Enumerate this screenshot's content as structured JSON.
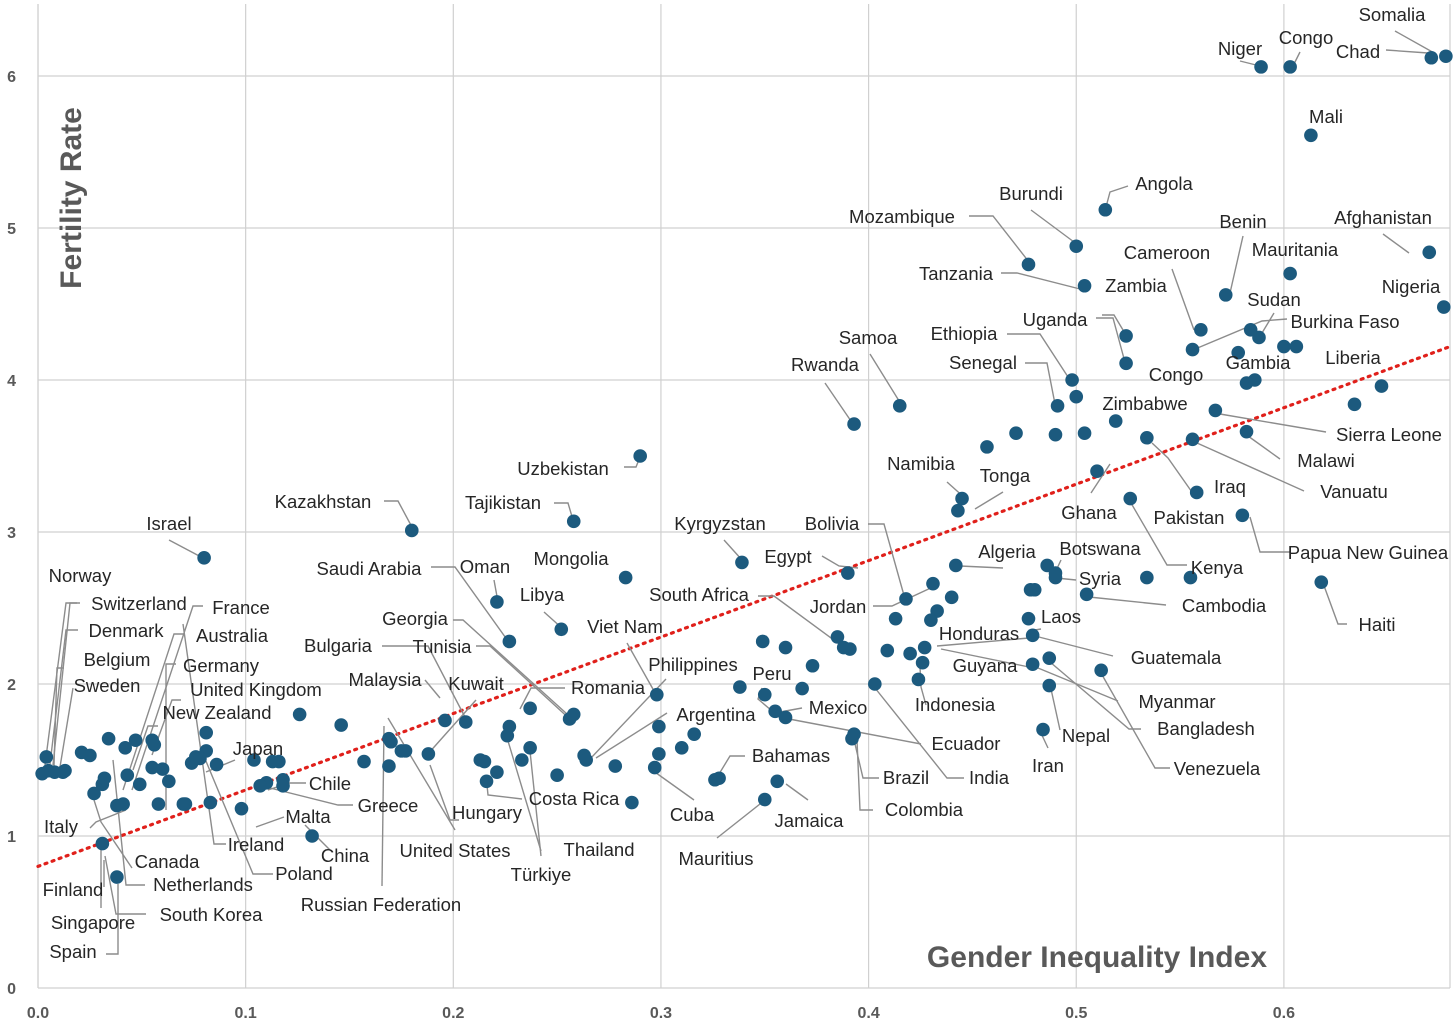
{
  "chart_data": {
    "type": "scatter",
    "xlabel": "Gender Inequality Index",
    "ylabel": "Fertility Rate",
    "xlim": [
      0,
      0.68
    ],
    "ylim": [
      0,
      6.4
    ],
    "x_ticks": [
      "0.0",
      "0.1",
      "0.2",
      "0.3",
      "0.4",
      "0.5",
      "0.6"
    ],
    "y_ticks": [
      "0",
      "1",
      "2",
      "3",
      "4",
      "5",
      "6"
    ],
    "grid": true,
    "colors": {
      "points": "#1c5a7e",
      "trendline": "#e0201b",
      "grid": "#d0d0d0",
      "leader": "#8c8c8c"
    },
    "trendline": {
      "style": "dotted",
      "x": [
        0,
        0.68
      ],
      "y": [
        0.8,
        4.22
      ]
    },
    "labeled_points": [
      {
        "label": "Somalia",
        "x": 0.678,
        "y": 6.13
      },
      {
        "label": "Chad",
        "x": 0.671,
        "y": 6.12
      },
      {
        "label": "Niger",
        "x": 0.589,
        "y": 6.06
      },
      {
        "label": "Congo",
        "x": 0.603,
        "y": 6.06
      },
      {
        "label": "Mali",
        "x": 0.613,
        "y": 5.61
      },
      {
        "label": "Angola",
        "x": 0.514,
        "y": 5.12
      },
      {
        "label": "Burundi",
        "x": 0.5,
        "y": 4.88
      },
      {
        "label": "Mozambique",
        "x": 0.477,
        "y": 4.76
      },
      {
        "label": "Tanzania",
        "x": 0.504,
        "y": 4.62
      },
      {
        "label": "Afghanistan",
        "x": 0.67,
        "y": 4.84
      },
      {
        "label": "Benin",
        "x": 0.572,
        "y": 4.56
      },
      {
        "label": "Mauritania",
        "x": 0.603,
        "y": 4.7
      },
      {
        "label": "Cameroon",
        "x": 0.56,
        "y": 4.33
      },
      {
        "label": "Zambia",
        "x": 0.524,
        "y": 4.29
      },
      {
        "label": "Nigeria",
        "x": 0.677,
        "y": 4.48
      },
      {
        "label": "Sudan",
        "x": 0.588,
        "y": 4.28
      },
      {
        "label": "Burkina Faso",
        "x": 0.584,
        "y": 4.33
      },
      {
        "label": "Uganda",
        "x": 0.524,
        "y": 4.11
      },
      {
        "label": "Ethiopia",
        "x": 0.498,
        "y": 4.0
      },
      {
        "label": "Gambia",
        "x": 0.586,
        "y": 4.0
      },
      {
        "label": "Liberia",
        "x": 0.647,
        "y": 3.96
      },
      {
        "label": "Congo",
        "x": 0.556,
        "y": 4.2
      },
      {
        "label": "Senegal",
        "x": 0.491,
        "y": 3.83
      },
      {
        "label": "Samoa",
        "x": 0.415,
        "y": 3.83
      },
      {
        "label": "Rwanda",
        "x": 0.393,
        "y": 3.71
      },
      {
        "label": "Zimbabwe",
        "x": 0.519,
        "y": 3.73
      },
      {
        "label": "Sierra Leone",
        "x": 0.567,
        "y": 3.8
      },
      {
        "label": "Malawi",
        "x": 0.582,
        "y": 3.66
      },
      {
        "label": "Vanuatu",
        "x": 0.556,
        "y": 3.61
      },
      {
        "label": "Uzbekistan",
        "x": 0.29,
        "y": 3.5
      },
      {
        "label": "Iraq",
        "x": 0.558,
        "y": 3.26
      },
      {
        "label": "Pakistan",
        "x": 0.534,
        "y": 3.62
      },
      {
        "label": "Ghana",
        "x": 0.51,
        "y": 3.4
      },
      {
        "label": "Namibia",
        "x": 0.445,
        "y": 3.22
      },
      {
        "label": "Tonga",
        "x": 0.443,
        "y": 3.14
      },
      {
        "label": "Kenya",
        "x": 0.526,
        "y": 3.22
      },
      {
        "label": "Kazakhstan",
        "x": 0.18,
        "y": 3.01
      },
      {
        "label": "Tajikistan",
        "x": 0.258,
        "y": 3.07
      },
      {
        "label": "Israel",
        "x": 0.08,
        "y": 2.83
      },
      {
        "label": "Papua New Guinea",
        "x": 0.58,
        "y": 3.11
      },
      {
        "label": "Kyrgyzstan",
        "x": 0.339,
        "y": 2.8
      },
      {
        "label": "Bolivia",
        "x": 0.418,
        "y": 2.56
      },
      {
        "label": "Egypt",
        "x": 0.39,
        "y": 2.73
      },
      {
        "label": "Algeria",
        "x": 0.442,
        "y": 2.78
      },
      {
        "label": "Botswana",
        "x": 0.49,
        "y": 2.73
      },
      {
        "label": "Syria",
        "x": 0.534,
        "y": 2.7
      },
      {
        "label": "Haiti",
        "x": 0.618,
        "y": 2.67
      },
      {
        "label": "Mongolia",
        "x": 0.283,
        "y": 2.7
      },
      {
        "label": "Saudi Arabia",
        "x": 0.227,
        "y": 2.28
      },
      {
        "label": "Oman",
        "x": 0.221,
        "y": 2.54
      },
      {
        "label": "Libya",
        "x": 0.252,
        "y": 2.36
      },
      {
        "label": "South Africa",
        "x": 0.388,
        "y": 2.24
      },
      {
        "label": "Jordan",
        "x": 0.431,
        "y": 2.66
      },
      {
        "label": "Cambodia",
        "x": 0.505,
        "y": 2.59
      },
      {
        "label": "Laos",
        "x": 0.478,
        "y": 2.62
      },
      {
        "label": "Honduras",
        "x": 0.427,
        "y": 2.24
      },
      {
        "label": "Guatemala",
        "x": 0.479,
        "y": 2.32
      },
      {
        "label": "Guyana",
        "x": 0.43,
        "y": 2.42
      },
      {
        "label": "Georgia",
        "x": 0.256,
        "y": 1.77
      },
      {
        "label": "Tunisia",
        "x": 0.258,
        "y": 1.8
      },
      {
        "label": "Viet Nam",
        "x": 0.298,
        "y": 1.93
      },
      {
        "label": "Romania",
        "x": 0.237,
        "y": 1.84
      },
      {
        "label": "Bulgaria",
        "x": 0.206,
        "y": 1.75
      },
      {
        "label": "Malaysia",
        "x": 0.17,
        "y": 1.62
      },
      {
        "label": "Kuwait",
        "x": 0.188,
        "y": 1.54
      },
      {
        "label": "Philippines",
        "x": 0.264,
        "y": 1.5
      },
      {
        "label": "Peru",
        "x": 0.35,
        "y": 1.93
      },
      {
        "label": "Mexico",
        "x": 0.355,
        "y": 1.82
      },
      {
        "label": "Indonesia",
        "x": 0.426,
        "y": 2.14
      },
      {
        "label": "Myanmar",
        "x": 0.487,
        "y": 2.17
      },
      {
        "label": "Bangladesh",
        "x": 0.479,
        "y": 2.13
      },
      {
        "label": "Venezuela",
        "x": 0.512,
        "y": 2.09
      },
      {
        "label": "Nepal",
        "x": 0.487,
        "y": 1.99
      },
      {
        "label": "Iran",
        "x": 0.484,
        "y": 1.7
      },
      {
        "label": "Argentina",
        "x": 0.299,
        "y": 1.54
      },
      {
        "label": "Ecuador",
        "x": 0.36,
        "y": 1.78
      },
      {
        "label": "India",
        "x": 0.403,
        "y": 2.0
      },
      {
        "label": "Brazil",
        "x": 0.392,
        "y": 1.64
      },
      {
        "label": "Colombia",
        "x": 0.393,
        "y": 1.67
      },
      {
        "label": "Bahamas",
        "x": 0.326,
        "y": 1.37
      },
      {
        "label": "Jamaica",
        "x": 0.356,
        "y": 1.36
      },
      {
        "label": "Mauritius",
        "x": 0.35,
        "y": 1.24
      },
      {
        "label": "Cuba",
        "x": 0.297,
        "y": 1.45
      },
      {
        "label": "Costa Rica",
        "x": 0.216,
        "y": 1.36
      },
      {
        "label": "Hungary",
        "x": 0.215,
        "y": 1.49
      },
      {
        "label": "Thailand",
        "x": 0.226,
        "y": 1.66
      },
      {
        "label": "Türkiye",
        "x": 0.227,
        "y": 1.72
      },
      {
        "label": "United States",
        "x": 0.169,
        "y": 1.64
      },
      {
        "label": "Russian Federation",
        "x": 0.169,
        "y": 1.46
      },
      {
        "label": "China",
        "x": 0.11,
        "y": 1.35
      },
      {
        "label": "Greece",
        "x": 0.118,
        "y": 1.37
      },
      {
        "label": "Malta",
        "x": 0.098,
        "y": 1.18
      },
      {
        "label": "Chile",
        "x": 0.113,
        "y": 1.49
      },
      {
        "label": "Japan",
        "x": 0.083,
        "y": 1.22
      },
      {
        "label": "Poland",
        "x": 0.107,
        "y": 1.33
      },
      {
        "label": "Ireland",
        "x": 0.07,
        "y": 1.21
      },
      {
        "label": "United Kingdom",
        "x": 0.081,
        "y": 1.56
      },
      {
        "label": "New Zealand",
        "x": 0.078,
        "y": 1.51
      },
      {
        "label": "Germany",
        "x": 0.06,
        "y": 1.44
      },
      {
        "label": "Australia",
        "x": 0.055,
        "y": 1.63
      },
      {
        "label": "France",
        "x": 0.034,
        "y": 1.64
      },
      {
        "label": "Belgium",
        "x": 0.008,
        "y": 1.42
      },
      {
        "label": "Sweden",
        "x": 0.004,
        "y": 1.52
      },
      {
        "label": "Switzerland",
        "x": 0.005,
        "y": 1.43
      },
      {
        "label": "Denmark",
        "x": 0.013,
        "y": 1.43
      },
      {
        "label": "Norway",
        "x": 0.002,
        "y": 1.41
      },
      {
        "label": "Italy",
        "x": 0.027,
        "y": 1.28
      },
      {
        "label": "Canada",
        "x": 0.041,
        "y": 1.21
      },
      {
        "label": "Netherlands",
        "x": 0.025,
        "y": 1.53
      },
      {
        "label": "Finland",
        "x": 0.032,
        "y": 1.38
      },
      {
        "label": "Singapore",
        "x": 0.038,
        "y": 1.2
      },
      {
        "label": "South Korea",
        "x": 0.031,
        "y": 0.95
      },
      {
        "label": "Spain",
        "x": 0.038,
        "y": 0.73
      }
    ],
    "unlabeled_points": [
      [
        0.042,
        1.58
      ],
      [
        0.056,
        1.6
      ],
      [
        0.047,
        1.63
      ],
      [
        0.063,
        1.36
      ],
      [
        0.055,
        1.45
      ],
      [
        0.058,
        1.21
      ],
      [
        0.071,
        1.21
      ],
      [
        0.074,
        1.48
      ],
      [
        0.086,
        1.47
      ],
      [
        0.081,
        1.68
      ],
      [
        0.076,
        1.52
      ],
      [
        0.049,
        1.34
      ],
      [
        0.043,
        1.4
      ],
      [
        0.031,
        1.34
      ],
      [
        0.021,
        1.55
      ],
      [
        0.012,
        1.42
      ],
      [
        0.126,
        1.8
      ],
      [
        0.116,
        1.49
      ],
      [
        0.104,
        1.5
      ],
      [
        0.118,
        1.33
      ],
      [
        0.132,
        1.0
      ],
      [
        0.146,
        1.73
      ],
      [
        0.157,
        1.49
      ],
      [
        0.175,
        1.56
      ],
      [
        0.196,
        1.76
      ],
      [
        0.177,
        1.56
      ],
      [
        0.221,
        1.42
      ],
      [
        0.213,
        1.5
      ],
      [
        0.233,
        1.5
      ],
      [
        0.237,
        1.58
      ],
      [
        0.25,
        1.4
      ],
      [
        0.263,
        1.53
      ],
      [
        0.278,
        1.46
      ],
      [
        0.286,
        1.22
      ],
      [
        0.299,
        1.72
      ],
      [
        0.31,
        1.58
      ],
      [
        0.316,
        1.67
      ],
      [
        0.328,
        1.38
      ],
      [
        0.338,
        1.98
      ],
      [
        0.349,
        2.28
      ],
      [
        0.36,
        2.24
      ],
      [
        0.368,
        1.97
      ],
      [
        0.373,
        2.12
      ],
      [
        0.385,
        2.31
      ],
      [
        0.391,
        2.23
      ],
      [
        0.409,
        2.22
      ],
      [
        0.413,
        2.43
      ],
      [
        0.42,
        2.2
      ],
      [
        0.424,
        2.03
      ],
      [
        0.433,
        2.48
      ],
      [
        0.44,
        2.57
      ],
      [
        0.477,
        2.43
      ],
      [
        0.48,
        2.62
      ],
      [
        0.486,
        2.78
      ],
      [
        0.49,
        2.7
      ],
      [
        0.457,
        3.56
      ],
      [
        0.471,
        3.65
      ],
      [
        0.49,
        3.64
      ],
      [
        0.5,
        3.89
      ],
      [
        0.504,
        3.65
      ],
      [
        0.555,
        2.7
      ],
      [
        0.582,
        3.98
      ],
      [
        0.6,
        4.22
      ],
      [
        0.606,
        4.22
      ],
      [
        0.578,
        4.18
      ],
      [
        0.634,
        3.84
      ]
    ]
  }
}
